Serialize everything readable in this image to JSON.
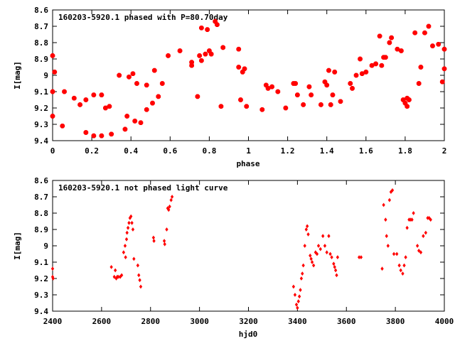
{
  "chart_data": [
    {
      "type": "scatter",
      "title": "160203-5920.1 phased with P=80.70day",
      "xlabel": "phase",
      "ylabel": "I[mag]",
      "xlim": [
        0,
        2
      ],
      "ylim": [
        8.6,
        9.4
      ],
      "y_inverted": true,
      "x_ticks": [
        "0",
        "0.2",
        "0.4",
        "0.6",
        "0.8",
        "1",
        "1.2",
        "1.4",
        "1.6",
        "1.8",
        "2"
      ],
      "y_ticks": [
        "8.6",
        "8.7",
        "8.8",
        "8.9",
        "9",
        "9.1",
        "9.2",
        "9.3",
        "9.4"
      ],
      "marker": "star",
      "color": "#ff0000",
      "grid": false,
      "x": [
        0.0,
        0.0,
        0.01,
        0.0,
        0.05,
        0.06,
        0.11,
        0.14,
        0.17,
        0.17,
        0.21,
        0.21,
        0.25,
        0.25,
        0.27,
        0.29,
        0.3,
        0.34,
        0.37,
        0.38,
        0.39,
        0.42,
        0.41,
        0.43,
        0.45,
        0.48,
        0.48,
        0.51,
        0.52,
        0.54,
        0.56,
        0.59,
        0.65,
        0.71,
        0.71,
        0.74,
        0.75,
        0.76,
        0.76,
        0.78,
        0.79,
        0.8,
        0.81,
        0.83,
        0.84,
        0.86,
        0.87,
        0.95,
        0.95,
        0.96,
        0.97,
        0.98,
        0.99,
        1.07,
        1.09,
        1.1,
        1.12,
        1.15,
        1.19,
        1.23,
        1.24,
        1.25,
        1.28,
        1.31,
        1.32,
        1.37,
        1.39,
        1.4,
        1.41,
        1.42,
        1.43,
        1.44,
        1.47,
        1.52,
        1.53,
        1.55,
        1.57,
        1.58,
        1.6,
        1.63,
        1.65,
        1.67,
        1.68,
        1.69,
        1.7,
        1.72,
        1.73,
        1.76,
        1.78,
        1.79,
        1.8,
        1.81,
        1.81,
        1.82,
        1.85,
        1.87,
        1.88,
        1.9,
        1.92,
        1.94,
        1.97,
        1.99,
        2.0,
        2.0
      ],
      "y": [
        8.88,
        9.1,
        8.98,
        9.25,
        9.31,
        9.1,
        9.14,
        9.18,
        9.15,
        9.35,
        9.12,
        9.37,
        9.37,
        9.12,
        9.2,
        9.19,
        9.36,
        9.0,
        9.33,
        9.25,
        9.01,
        9.28,
        8.99,
        9.05,
        9.29,
        9.06,
        9.21,
        9.17,
        8.97,
        9.13,
        9.05,
        8.88,
        8.85,
        8.92,
        8.94,
        9.13,
        8.88,
        8.71,
        8.91,
        8.87,
        8.72,
        8.85,
        8.87,
        8.67,
        8.69,
        9.19,
        8.83,
        8.84,
        8.95,
        9.15,
        8.98,
        8.96,
        9.19,
        9.21,
        9.06,
        9.08,
        9.07,
        9.1,
        9.2,
        9.05,
        9.05,
        9.12,
        9.18,
        9.07,
        9.12,
        9.18,
        9.04,
        9.06,
        8.97,
        9.18,
        9.12,
        8.98,
        9.16,
        9.05,
        9.08,
        9.0,
        8.9,
        8.99,
        8.98,
        8.94,
        8.93,
        8.76,
        8.94,
        8.89,
        8.89,
        8.8,
        8.77,
        8.84,
        8.85,
        9.15,
        9.17,
        9.14,
        9.19,
        9.15,
        8.74,
        9.05,
        8.95,
        8.74,
        8.7,
        8.82,
        8.81,
        9.04,
        8.84,
        8.96
      ]
    },
    {
      "type": "scatter",
      "title": "160203-5920.1 not phased light curve",
      "xlabel": "hjd0",
      "ylabel": "I[mag]",
      "xlim": [
        2400,
        4000
      ],
      "ylim": [
        8.6,
        9.4
      ],
      "y_inverted": true,
      "x_ticks": [
        "2400",
        "2600",
        "2800",
        "3000",
        "3200",
        "3400",
        "3600",
        "3800",
        "4000"
      ],
      "y_ticks": [
        "8.6",
        "8.7",
        "8.8",
        "8.9",
        "9",
        "9.1",
        "9.2",
        "9.3",
        "9.4"
      ],
      "marker": "diamond",
      "color": "#ff0000",
      "grid": false,
      "x": [
        2400,
        2400,
        2402,
        2640,
        2652,
        2656,
        2660,
        2664,
        2668,
        2676,
        2682,
        2690,
        2696,
        2698,
        2702,
        2704,
        2708,
        2712,
        2716,
        2720,
        2724,
        2728,
        2732,
        2748,
        2752,
        2756,
        2760,
        2812,
        2814,
        2856,
        2858,
        2866,
        2870,
        2874,
        2878,
        2884,
        2888,
        3384,
        3390,
        3396,
        3400,
        3404,
        3408,
        3412,
        3416,
        3420,
        3424,
        3430,
        3436,
        3440,
        3444,
        3452,
        3456,
        3460,
        3466,
        3474,
        3480,
        3486,
        3494,
        3504,
        3512,
        3520,
        3528,
        3534,
        3540,
        3548,
        3552,
        3556,
        3560,
        3564,
        3652,
        3660,
        3746,
        3752,
        3760,
        3764,
        3770,
        3776,
        3782,
        3788,
        3794,
        3806,
        3816,
        3822,
        3830,
        3836,
        3842,
        3848,
        3856,
        3862,
        3868,
        3874,
        3890,
        3896,
        3904,
        3914,
        3924,
        3932,
        3938,
        3944
      ],
      "y": [
        9.14,
        9.19,
        9.2,
        9.13,
        9.19,
        9.15,
        9.2,
        9.19,
        9.19,
        9.19,
        9.18,
        9.04,
        9.0,
        9.07,
        8.96,
        8.92,
        8.89,
        8.86,
        8.83,
        8.82,
        8.86,
        8.9,
        9.08,
        9.12,
        9.18,
        9.21,
        9.25,
        8.95,
        8.97,
        8.97,
        8.99,
        8.9,
        8.77,
        8.78,
        8.76,
        8.72,
        8.7,
        9.25,
        9.3,
        9.36,
        9.38,
        9.34,
        9.31,
        9.27,
        9.2,
        9.17,
        9.12,
        9.0,
        8.9,
        8.88,
        8.93,
        9.06,
        9.08,
        9.1,
        9.12,
        9.04,
        9.05,
        9.0,
        9.02,
        8.94,
        9.0,
        9.04,
        8.94,
        9.05,
        9.07,
        9.11,
        9.13,
        9.15,
        9.18,
        9.07,
        9.07,
        9.07,
        9.14,
        8.75,
        8.84,
        8.94,
        9.0,
        8.72,
        8.67,
        8.66,
        9.05,
        9.05,
        9.12,
        9.15,
        9.17,
        9.12,
        9.07,
        8.89,
        8.84,
        8.84,
        8.84,
        8.8,
        9.0,
        9.03,
        9.04,
        8.94,
        8.92,
        8.83,
        8.83,
        8.84
      ]
    }
  ]
}
